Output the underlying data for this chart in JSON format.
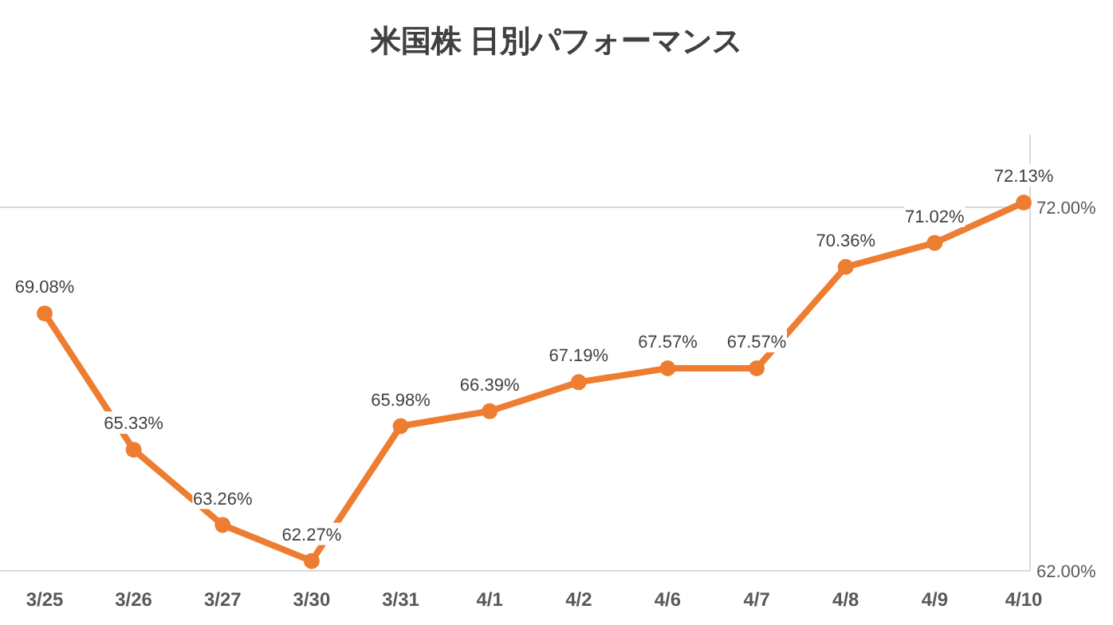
{
  "chart_data": {
    "type": "line",
    "title": "米国株 日別パフォーマンス",
    "categories": [
      "3/25",
      "3/26",
      "3/27",
      "3/30",
      "3/31",
      "4/1",
      "4/2",
      "4/6",
      "4/7",
      "4/8",
      "4/9",
      "4/10"
    ],
    "series": [
      {
        "color": "#ed7d31",
        "values": [
          69.08,
          65.33,
          63.26,
          62.27,
          65.98,
          66.39,
          67.19,
          67.57,
          67.57,
          70.36,
          71.02,
          72.13
        ],
        "value_labels": [
          "69.08%",
          "65.33%",
          "63.26%",
          "62.27%",
          "65.98%",
          "66.39%",
          "67.19%",
          "67.57%",
          "67.57%",
          "70.36%",
          "71.02%",
          "72.13%"
        ]
      }
    ],
    "ylim": [
      62,
      74
    ],
    "yticks": [
      {
        "value": 62,
        "label": "62.00%"
      },
      {
        "value": 72,
        "label": "72.00%"
      }
    ],
    "grid": "y",
    "marker": "circle",
    "line_style": "solid"
  }
}
